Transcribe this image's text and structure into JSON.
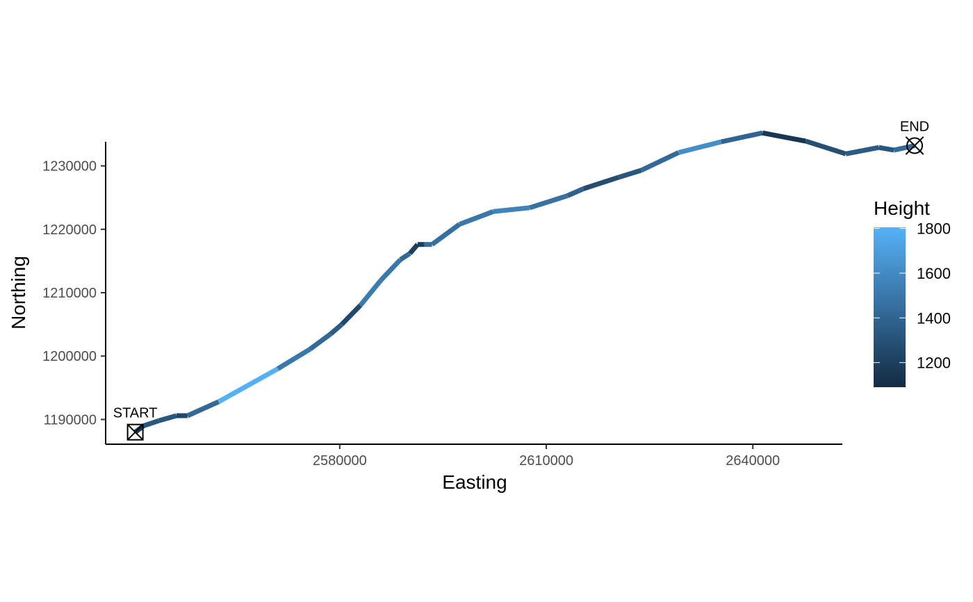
{
  "chart_data": {
    "type": "line",
    "title": "",
    "xlabel": "Easting",
    "ylabel": "Northing",
    "xlim": [
      2546000,
      2653000
    ],
    "ylim": [
      1186100,
      1233800
    ],
    "x_ticks": [
      2580000,
      2610000,
      2640000
    ],
    "x_tick_labels": [
      "2580000",
      "2610000",
      "2640000"
    ],
    "y_ticks": [
      1190000,
      1200000,
      1210000,
      1220000,
      1230000
    ],
    "y_tick_labels": [
      "1190000",
      "1200000",
      "1210000",
      "1220000",
      "1230000"
    ],
    "grid": false,
    "legend": {
      "title": "Height",
      "position": "right",
      "range": [
        1090,
        1805
      ],
      "breaks": [
        1200,
        1400,
        1600,
        1800
      ],
      "break_labels": [
        "1200",
        "1400",
        "1600",
        "1800"
      ],
      "color_low": "#132B43",
      "color_high": "#56B1F7"
    },
    "path": [
      {
        "x": 2550300,
        "y": 1188000,
        "height": 1180
      },
      {
        "x": 2551500,
        "y": 1189000,
        "height": 1330
      },
      {
        "x": 2553700,
        "y": 1189800,
        "height": 1330
      },
      {
        "x": 2556300,
        "y": 1190600,
        "height": 1250
      },
      {
        "x": 2557900,
        "y": 1190600,
        "height": 1420
      },
      {
        "x": 2562400,
        "y": 1192800,
        "height": 1800
      },
      {
        "x": 2566700,
        "y": 1195400,
        "height": 1800
      },
      {
        "x": 2571000,
        "y": 1198000,
        "height": 1500
      },
      {
        "x": 2575700,
        "y": 1201100,
        "height": 1420
      },
      {
        "x": 2578700,
        "y": 1203500,
        "height": 1350
      },
      {
        "x": 2580300,
        "y": 1205000,
        "height": 1250
      },
      {
        "x": 2583000,
        "y": 1208000,
        "height": 1520
      },
      {
        "x": 2586000,
        "y": 1212000,
        "height": 1500
      },
      {
        "x": 2588800,
        "y": 1215200,
        "height": 1420
      },
      {
        "x": 2590200,
        "y": 1216200,
        "height": 1200
      },
      {
        "x": 2591300,
        "y": 1217600,
        "height": 1180
      },
      {
        "x": 2592300,
        "y": 1217600,
        "height": 1450
      },
      {
        "x": 2593400,
        "y": 1217600,
        "height": 1460
      },
      {
        "x": 2597400,
        "y": 1220800,
        "height": 1500
      },
      {
        "x": 2602300,
        "y": 1222800,
        "height": 1560
      },
      {
        "x": 2607600,
        "y": 1223400,
        "height": 1470
      },
      {
        "x": 2613100,
        "y": 1225300,
        "height": 1380
      },
      {
        "x": 2615400,
        "y": 1226400,
        "height": 1270
      },
      {
        "x": 2620500,
        "y": 1228200,
        "height": 1320
      },
      {
        "x": 2623800,
        "y": 1229300,
        "height": 1420
      },
      {
        "x": 2629200,
        "y": 1232100,
        "height": 1620
      },
      {
        "x": 2635400,
        "y": 1233800,
        "height": 1400
      },
      {
        "x": 2641400,
        "y": 1235200,
        "height": 1150
      },
      {
        "x": 2647700,
        "y": 1233900,
        "height": 1280
      },
      {
        "x": 2653500,
        "y": 1231900,
        "height": 1350
      },
      {
        "x": 2658300,
        "y": 1232900,
        "height": 1330
      },
      {
        "x": 2660500,
        "y": 1232500,
        "height": 1420
      },
      {
        "x": 2663500,
        "y": 1233200,
        "height": 1430
      }
    ],
    "markers": [
      {
        "label": "START",
        "x": 2550300,
        "y": 1188000,
        "shape": "square-cross"
      },
      {
        "label": "END",
        "x": 2663500,
        "y": 1233200,
        "shape": "circle-cross"
      }
    ]
  }
}
